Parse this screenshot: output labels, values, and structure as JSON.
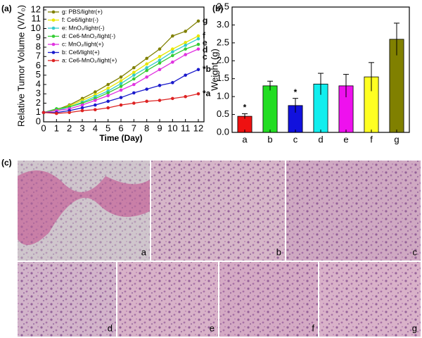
{
  "figure": {
    "panel_labels": [
      "(a)",
      "(b)",
      "(c)"
    ],
    "micrograph_labels": [
      "a",
      "b",
      "c",
      "d",
      "e",
      "f",
      "g"
    ]
  },
  "chart_data": [
    {
      "type": "line",
      "xlabel": "Time (Day)",
      "ylabel": "Relative Tumor Volume (V/V₀)",
      "x": [
        0,
        1,
        2,
        3,
        4,
        5,
        6,
        7,
        8,
        9,
        10,
        11,
        12
      ],
      "xlim": [
        0,
        12
      ],
      "xticks": [
        0,
        1,
        2,
        3,
        4,
        5,
        6,
        7,
        8,
        9,
        10,
        11,
        12
      ],
      "ylim": [
        0,
        12
      ],
      "yticks": [
        0,
        1,
        2,
        3,
        4,
        5,
        6,
        7,
        8,
        9,
        10,
        11,
        12
      ],
      "legend": "upper left",
      "series": [
        {
          "name": "g: PBS/lightr(+)",
          "end_label": "g",
          "color": "#808000",
          "values": [
            1,
            1.3,
            1.8,
            2.5,
            3.2,
            4.0,
            4.8,
            5.8,
            6.8,
            7.8,
            9.2,
            9.7,
            10.8
          ]
        },
        {
          "name": "f: Ce6/lightr(-)",
          "end_label": "f",
          "color": "#e6e600",
          "values": [
            1,
            1.25,
            1.7,
            2.3,
            2.9,
            3.6,
            4.4,
            5.3,
            6.2,
            7.0,
            7.8,
            8.5,
            9.2
          ]
        },
        {
          "name": "e: MnO₂/lightr(-)",
          "end_label": "e",
          "color": "#33cccc",
          "values": [
            1,
            1.2,
            1.6,
            2.1,
            2.7,
            3.3,
            4.1,
            5.0,
            5.8,
            6.6,
            7.5,
            8.2,
            8.9
          ]
        },
        {
          "name": "d: Ce6-MnO₂/light(-)",
          "end_label": "d",
          "color": "#33cc33",
          "values": [
            1,
            1.4,
            1.6,
            2.0,
            2.5,
            3.1,
            3.8,
            4.6,
            5.5,
            6.3,
            7.1,
            7.8,
            8.3
          ]
        },
        {
          "name": "c: MnO₂/light(+)",
          "end_label": "c",
          "color": "#e033e0",
          "values": [
            1,
            1.2,
            1.4,
            1.8,
            2.3,
            2.8,
            3.4,
            4.0,
            4.8,
            5.6,
            6.4,
            7.2,
            7.8
          ]
        },
        {
          "name": "b: Ce6/light(+)",
          "end_label": "*b",
          "color": "#1a1acc",
          "values": [
            1,
            1.0,
            1.2,
            1.5,
            1.8,
            2.2,
            2.6,
            3.1,
            3.5,
            3.9,
            4.2,
            5.0,
            5.6
          ]
        },
        {
          "name": "a: Ce6-MnO₂/light(+)",
          "end_label": "*a",
          "color": "#dd2222",
          "values": [
            1,
            0.9,
            1.0,
            1.2,
            1.3,
            1.5,
            1.8,
            2.0,
            2.2,
            2.3,
            2.5,
            2.7,
            3.0
          ]
        }
      ]
    },
    {
      "type": "bar",
      "ylabel": "Weight (g)",
      "categories": [
        "a",
        "b",
        "c",
        "d",
        "e",
        "f",
        "g"
      ],
      "values": [
        0.45,
        1.3,
        0.75,
        1.35,
        1.3,
        1.55,
        2.6
      ],
      "errors": [
        0.07,
        0.13,
        0.2,
        0.3,
        0.32,
        0.4,
        0.45
      ],
      "colors": [
        "#ee1111",
        "#22dd22",
        "#1111dd",
        "#11eeee",
        "#ee11ee",
        "#ffff22",
        "#808000"
      ],
      "annotations": [
        {
          "text": "*",
          "category": "a"
        },
        {
          "text": "*",
          "category": "c"
        }
      ],
      "ylim": [
        0,
        3.5
      ],
      "yticks": [
        {
          "value": 0,
          "label": "0.0"
        },
        0.5,
        {
          "value": 1,
          "label": "1.0"
        },
        1.5,
        {
          "value": 2,
          "label": "2.0"
        },
        2.5,
        {
          "value": 3,
          "label": "3.0"
        },
        3.5
      ]
    }
  ]
}
